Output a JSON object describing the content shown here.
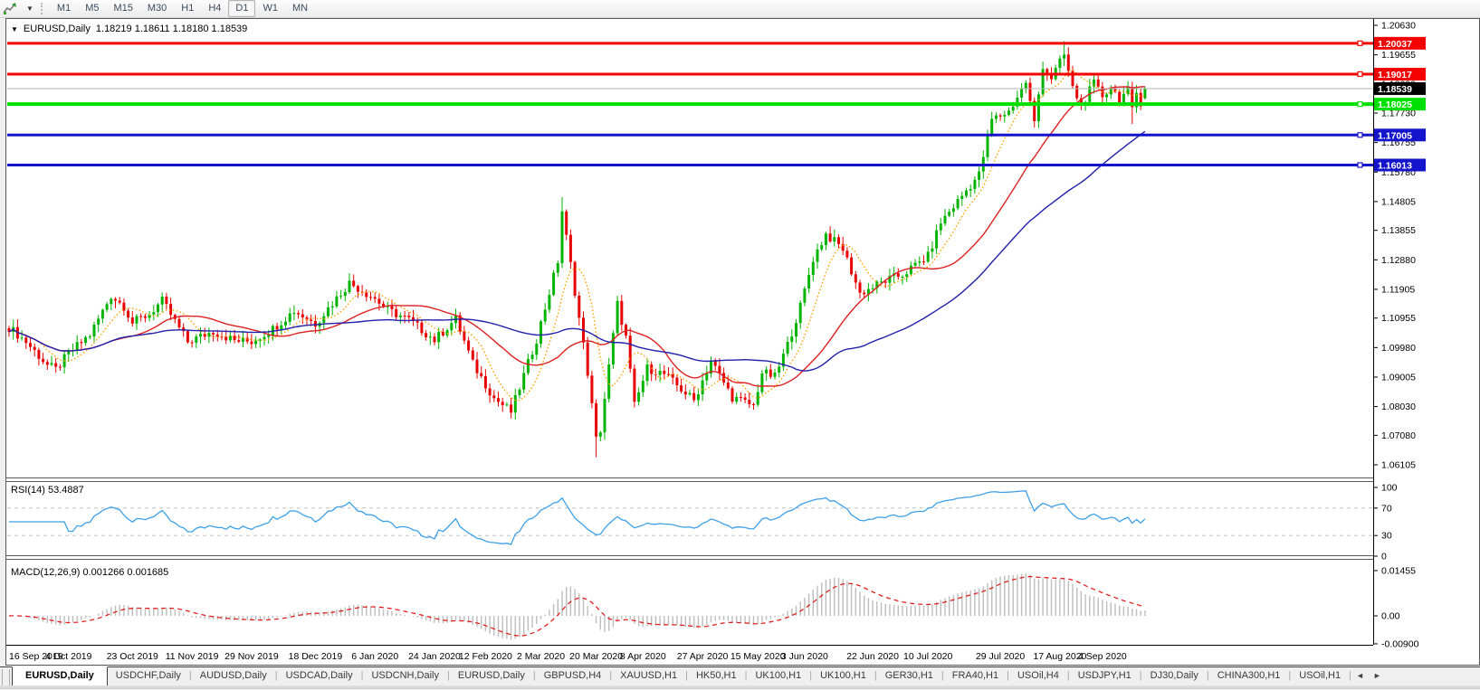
{
  "toolbar": {
    "timeframes": [
      "M1",
      "M5",
      "M15",
      "M30",
      "H1",
      "H4",
      "D1",
      "W1",
      "MN"
    ],
    "active_timeframe": "D1"
  },
  "icons": {
    "collapse": "▼",
    "dropdown": "▼",
    "scroll_left": "◄",
    "scroll_right": "►"
  },
  "chart": {
    "symbol_period": "EURUSD,Daily",
    "ohlc_text": "1.18219 1.18611 1.18180 1.18539"
  },
  "indicators": {
    "rsi_label": "RSI(14) 53.4887",
    "macd_label": "MACD(12,26,9) 0.001266 0.001685"
  },
  "price_axis": {
    "ticks": [
      "1.20630",
      "1.19655",
      "1.18680",
      "1.17730",
      "1.16755",
      "1.15780",
      "1.14805",
      "1.13855",
      "1.12880",
      "1.11905",
      "1.10955",
      "1.09980",
      "1.09005",
      "1.08030",
      "1.07080",
      "1.06105"
    ],
    "current_price": "1.18539",
    "levels": [
      {
        "label": "1.20037",
        "price": 1.20037,
        "color": "#f40000",
        "width": 3,
        "type": "resistance"
      },
      {
        "label": "1.19017",
        "price": 1.19017,
        "color": "#f40000",
        "width": 3,
        "type": "resistance"
      },
      {
        "label": "1.18025",
        "price": 1.18025,
        "color": "#00e000",
        "width": 4,
        "type": "pivot"
      },
      {
        "label": "1.17005",
        "price": 1.17005,
        "color": "#1414cc",
        "width": 3,
        "type": "support"
      },
      {
        "label": "1.16013",
        "price": 1.16013,
        "color": "#1414cc",
        "width": 3,
        "type": "support"
      }
    ]
  },
  "rsi_axis": {
    "ticks": [
      "100",
      "70",
      "30",
      "0"
    ],
    "dashed_levels": [
      70,
      30
    ]
  },
  "macd_axis": {
    "ticks": [
      "0.01455",
      "0.00",
      "-0.00900"
    ]
  },
  "date_axis": {
    "labels": [
      "16 Sep 2019",
      "4 Oct 2019",
      "23 Oct 2019",
      "11 Nov 2019",
      "29 Nov 2019",
      "18 Dec 2019",
      "6 Jan 2020",
      "24 Jan 2020",
      "12 Feb 2020",
      "2 Mar 2020",
      "20 Mar 2020",
      "8 Apr 2020",
      "27 Apr 2020",
      "15 May 2020",
      "3 Jun 2020",
      "22 Jun 2020",
      "10 Jul 2020",
      "29 Jul 2020",
      "17 Aug 2020",
      "4 Sep 2020"
    ],
    "indices": [
      0,
      14,
      29,
      43,
      57,
      72,
      86,
      100,
      112,
      125,
      138,
      149,
      163,
      176,
      187,
      203,
      216,
      233,
      247,
      257
    ]
  },
  "tabs": {
    "items": [
      {
        "label": "EURUSD,Daily",
        "active": true
      },
      {
        "label": "USDCHF,Daily",
        "active": false
      },
      {
        "label": "AUDUSD,Daily",
        "active": false
      },
      {
        "label": "USDCAD,Daily",
        "active": false
      },
      {
        "label": "USDCNH,Daily",
        "active": false
      },
      {
        "label": "EURUSD,Daily",
        "active": false
      },
      {
        "label": "GBPUSD,H4",
        "active": false
      },
      {
        "label": "XAUUSD,H1",
        "active": false
      },
      {
        "label": "HK50,H1",
        "active": false
      },
      {
        "label": "UK100,H1",
        "active": false
      },
      {
        "label": "UK100,H1",
        "active": false
      },
      {
        "label": "GER30,H1",
        "active": false
      },
      {
        "label": "FRA40,H1",
        "active": false
      },
      {
        "label": "USOil,H4",
        "active": false
      },
      {
        "label": "USDJPY,H1",
        "active": false
      },
      {
        "label": "DJ30,Daily",
        "active": false
      },
      {
        "label": "CHINA300,H1",
        "active": false
      },
      {
        "label": "USOil,H1",
        "active": false
      }
    ]
  },
  "chart_data": {
    "type": "candlestick",
    "symbol": "EURUSD",
    "period": "Daily",
    "title": "EURUSD,Daily 1.18219 1.18611 1.18180 1.18539",
    "ylim": [
      1.06105,
      1.2063
    ],
    "bars": 268,
    "last_bar": {
      "open": 1.18219,
      "high": 1.18611,
      "low": 1.1818,
      "close": 1.18539
    },
    "close_anchors": [
      [
        0,
        1.1065
      ],
      [
        4,
        1.1017
      ],
      [
        9,
        1.094
      ],
      [
        11,
        1.0925
      ],
      [
        14,
        1.0979
      ],
      [
        19,
        1.104
      ],
      [
        24,
        1.117
      ],
      [
        27,
        1.1135
      ],
      [
        29,
        1.108
      ],
      [
        33,
        1.111
      ],
      [
        36,
        1.1152
      ],
      [
        42,
        1.1017
      ],
      [
        48,
        1.1052
      ],
      [
        53,
        1.1021
      ],
      [
        57,
        1.1018
      ],
      [
        62,
        1.106
      ],
      [
        67,
        1.112
      ],
      [
        72,
        1.1077
      ],
      [
        80,
        1.1212
      ],
      [
        86,
        1.116
      ],
      [
        89,
        1.1122
      ],
      [
        94,
        1.109
      ],
      [
        100,
        1.1023
      ],
      [
        105,
        1.1093
      ],
      [
        109,
        1.0945
      ],
      [
        114,
        1.0831
      ],
      [
        118,
        1.0786
      ],
      [
        124,
        1.1026
      ],
      [
        129,
        1.1284
      ],
      [
        130,
        1.145
      ],
      [
        133,
        1.1184
      ],
      [
        136,
        1.0916
      ],
      [
        138,
        1.0694
      ],
      [
        139,
        1.0727
      ],
      [
        143,
        1.1141
      ],
      [
        145,
        1.1031
      ],
      [
        147,
        1.0806
      ],
      [
        150,
        1.093
      ],
      [
        154,
        1.091
      ],
      [
        161,
        1.0823
      ],
      [
        165,
        1.0955
      ],
      [
        170,
        1.0834
      ],
      [
        175,
        1.0805
      ],
      [
        177,
        1.0916
      ],
      [
        180,
        1.0901
      ],
      [
        183,
        1.1007
      ],
      [
        186,
        1.1134
      ],
      [
        189,
        1.1292
      ],
      [
        192,
        1.1373
      ],
      [
        196,
        1.1324
      ],
      [
        200,
        1.1177
      ],
      [
        206,
        1.1219
      ],
      [
        210,
        1.1239
      ],
      [
        216,
        1.13
      ],
      [
        219,
        1.1412
      ],
      [
        228,
        1.157
      ],
      [
        231,
        1.1752
      ],
      [
        235,
        1.1778
      ],
      [
        239,
        1.1876
      ],
      [
        241,
        1.174
      ],
      [
        243,
        1.193
      ],
      [
        245,
        1.189
      ],
      [
        248,
        1.1965
      ],
      [
        250,
        1.1855
      ],
      [
        252,
        1.18
      ],
      [
        255,
        1.187
      ],
      [
        257,
        1.183
      ],
      [
        259,
        1.1858
      ],
      [
        261,
        1.1822
      ],
      [
        263,
        1.1845
      ],
      [
        264,
        1.178
      ],
      [
        265,
        1.184
      ],
      [
        266,
        1.181
      ],
      [
        267,
        1.18539
      ]
    ],
    "wick_extremes": [
      [
        130,
        1.1495,
        null
      ],
      [
        138,
        null,
        1.0636
      ],
      [
        248,
        1.2011,
        null
      ],
      [
        264,
        null,
        1.1737
      ]
    ],
    "levels": [
      1.20037,
      1.19017,
      1.18025,
      1.17005,
      1.16013
    ],
    "moving_averages": [
      {
        "name": "fast-ma",
        "period": 8,
        "color": "#ffa200",
        "style": "dotted"
      },
      {
        "name": "mid-ma",
        "period": 25,
        "color": "#dd2222",
        "style": "solid"
      },
      {
        "name": "slow-ma",
        "period": 55,
        "color": "#2020aa",
        "style": "solid"
      }
    ],
    "rsi": {
      "period": 14,
      "value": 53.4887,
      "color": "#3da0e8",
      "levels": [
        70,
        30
      ],
      "range": [
        0,
        100
      ]
    },
    "macd": {
      "fast": 12,
      "slow": 26,
      "signal": 9,
      "main_value": 0.001266,
      "signal_value": 0.001685,
      "histogram_color": "#bdbdbd",
      "signal_color": "#e02020",
      "axis_max": 0.01455,
      "axis_min": -0.009
    },
    "candle_up_color": "#00b400",
    "candle_down_color": "#e80000"
  }
}
